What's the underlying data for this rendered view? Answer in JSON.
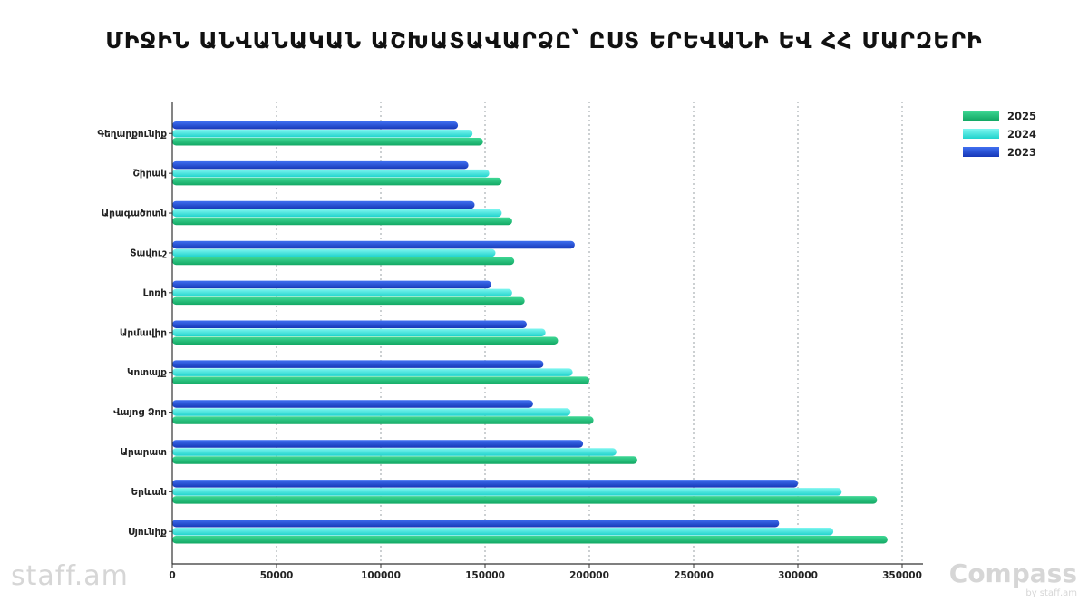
{
  "chart_data": {
    "type": "bar",
    "orientation": "horizontal",
    "title": "ՄԻՋԻՆ ԱՆՎԱՆԱԿԱՆ ԱՇԽԱՏԱՎԱՐՁԸ՝ ԸՍՏ ԵՐԵՎԱՆԻ ԵՎ ՀՀ ՄԱՐԶԵՐԻ",
    "xlabel": "",
    "ylabel": "",
    "xlim": [
      0,
      360000
    ],
    "xticks": [
      0,
      50000,
      100000,
      150000,
      200000,
      250000,
      300000,
      350000
    ],
    "grid": "vertical-dotted",
    "legend_position": "top-right",
    "categories": [
      "Գեղարքունիք",
      "Շիրակ",
      "Արագածոտն",
      "Տավուշ",
      "Լոռի",
      "Արմավիր",
      "Կոտայք",
      "Վայոց Ձոր",
      "Արարատ",
      "Երևան",
      "Սյունիք"
    ],
    "series": [
      {
        "name": "2025",
        "color": "#22c07a",
        "values": [
          149000,
          158000,
          163000,
          164000,
          169000,
          185000,
          200000,
          202000,
          223000,
          338000,
          343000
        ]
      },
      {
        "name": "2024",
        "color": "#3ee9e0",
        "values": [
          144000,
          152000,
          158000,
          155000,
          163000,
          179000,
          192000,
          191000,
          213000,
          321000,
          317000
        ]
      },
      {
        "name": "2023",
        "color": "#1e4fd6",
        "values": [
          137000,
          142000,
          145000,
          193000,
          153000,
          170000,
          178000,
          173000,
          197000,
          300000,
          291000
        ]
      }
    ]
  },
  "branding": {
    "left_logo": "staff.am",
    "right_logo": "Compass",
    "right_logo_sub": "by staff.am"
  }
}
